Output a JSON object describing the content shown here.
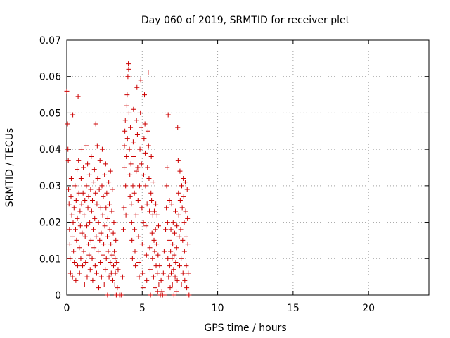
{
  "chart_data": {
    "type": "scatter",
    "title": "Day 060 of 2019, SRMTID for receiver plet",
    "xlabel": "GPS time / hours",
    "ylabel": "SRMTID / TECUs",
    "xlim": [
      0,
      24
    ],
    "ylim": [
      0,
      0.07
    ],
    "x_ticks": [
      "0",
      "5",
      "10",
      "15",
      "20"
    ],
    "y_ticks": [
      "0",
      "0.01",
      "0.02",
      "0.03",
      "0.04",
      "0.05",
      "0.06",
      "0.07"
    ],
    "x_tick_values": [
      0,
      5,
      10,
      15,
      20
    ],
    "y_tick_values": [
      0,
      0.01,
      0.02,
      0.03,
      0.04,
      0.05,
      0.06,
      0.07
    ],
    "grid": true,
    "marker": "+",
    "color": "#cc0000",
    "series": [
      {
        "values": [
          [
            0.0,
            0.056
          ],
          [
            0.05,
            0.047
          ],
          [
            0.08,
            0.04
          ],
          [
            0.1,
            0.037
          ],
          [
            0.12,
            0.029
          ],
          [
            0.15,
            0.025
          ],
          [
            0.18,
            0.018
          ],
          [
            0.2,
            0.014
          ],
          [
            0.22,
            0.01
          ],
          [
            0.25,
            0.006
          ],
          [
            0.28,
            0.027
          ],
          [
            0.3,
            0.032
          ],
          [
            0.33,
            0.022
          ],
          [
            0.35,
            0.016
          ],
          [
            0.38,
            0.005
          ],
          [
            0.4,
            0.0495
          ],
          [
            0.42,
            0.02
          ],
          [
            0.45,
            0.012
          ],
          [
            0.48,
            0.024
          ],
          [
            0.5,
            0.009
          ],
          [
            0.55,
            0.03
          ],
          [
            0.58,
            0.018
          ],
          [
            0.6,
            0.004
          ],
          [
            0.62,
            0.026
          ],
          [
            0.65,
            0.015
          ],
          [
            0.68,
            0.0345
          ],
          [
            0.7,
            0.021
          ],
          [
            0.72,
            0.008
          ],
          [
            0.75,
            0.0545
          ],
          [
            0.78,
            0.037
          ],
          [
            0.8,
            0.028
          ],
          [
            0.83,
            0.013
          ],
          [
            0.85,
            0.006
          ],
          [
            0.88,
            0.023
          ],
          [
            0.9,
            0.019
          ],
          [
            0.93,
            0.01
          ],
          [
            0.95,
            0.032
          ],
          [
            0.98,
            0.025
          ],
          [
            1.0,
            0.04
          ],
          [
            1.02,
            0.017
          ],
          [
            1.05,
            0.008
          ],
          [
            1.08,
            0.028
          ],
          [
            1.1,
            0.035
          ],
          [
            1.12,
            0.012
          ],
          [
            1.15,
            0.022
          ],
          [
            1.18,
            0.003
          ],
          [
            1.2,
            0.026
          ],
          [
            1.22,
            0.016
          ],
          [
            1.25,
            0.009
          ],
          [
            1.28,
            0.041
          ],
          [
            1.3,
            0.03
          ],
          [
            1.33,
            0.019
          ],
          [
            1.35,
            0.005
          ],
          [
            1.38,
            0.036
          ],
          [
            1.4,
            0.024
          ],
          [
            1.42,
            0.014
          ],
          [
            1.45,
            0.027
          ],
          [
            1.48,
            0.011
          ],
          [
            1.5,
            0.033
          ],
          [
            1.52,
            0.02
          ],
          [
            1.55,
            0.007
          ],
          [
            1.58,
            0.029
          ],
          [
            1.6,
            0.015
          ],
          [
            1.62,
            0.038
          ],
          [
            1.65,
            0.023
          ],
          [
            1.68,
            0.01
          ],
          [
            1.7,
            0.026
          ],
          [
            1.72,
            0.004
          ],
          [
            1.75,
            0.018
          ],
          [
            1.78,
            0.031
          ],
          [
            1.8,
            0.013
          ],
          [
            1.83,
            0.0345
          ],
          [
            1.85,
            0.021
          ],
          [
            1.88,
            0.008
          ],
          [
            1.9,
            0.028
          ],
          [
            1.92,
            0.047
          ],
          [
            1.95,
            0.016
          ],
          [
            1.98,
            0.006
          ],
          [
            2.0,
            0.025
          ],
          [
            2.02,
            0.041
          ],
          [
            2.05,
            0.032
          ],
          [
            2.08,
            0.012
          ],
          [
            2.1,
            0.02
          ],
          [
            2.12,
            0.002
          ],
          [
            2.15,
            0.029
          ],
          [
            2.18,
            0.015
          ],
          [
            2.2,
            0.037
          ],
          [
            2.22,
            0.009
          ],
          [
            2.25,
            0.024
          ],
          [
            2.28,
            0.017
          ],
          [
            2.3,
            0.005
          ],
          [
            2.33,
            0.03
          ],
          [
            2.35,
            0.04
          ],
          [
            2.38,
            0.022
          ],
          [
            2.4,
            0.011
          ],
          [
            2.42,
            0.027
          ],
          [
            2.45,
            0.014
          ],
          [
            2.48,
            0.003
          ],
          [
            2.5,
            0.033
          ],
          [
            2.52,
            0.019
          ],
          [
            2.55,
            0.007
          ],
          [
            2.58,
            0.036
          ],
          [
            2.6,
            0.024
          ],
          [
            2.62,
            0.01
          ],
          [
            2.65,
            0.028
          ],
          [
            2.68,
            0.016
          ],
          [
            2.7,
            0.0
          ],
          [
            2.72,
            0.021
          ],
          [
            2.75,
            0.012
          ],
          [
            2.78,
            0.031
          ],
          [
            2.8,
            0.005
          ],
          [
            2.82,
            0.025
          ],
          [
            2.85,
            0.018
          ],
          [
            2.88,
            0.009
          ],
          [
            2.9,
            0.034
          ],
          [
            2.92,
            0.014
          ],
          [
            2.95,
            0.006
          ],
          [
            2.98,
            0.023
          ],
          [
            3.0,
            0.011
          ],
          [
            3.02,
            0.029
          ],
          [
            3.05,
            0.004
          ],
          [
            3.08,
            0.017
          ],
          [
            3.1,
            0.008
          ],
          [
            3.12,
            0.02
          ],
          [
            3.15,
            0.012
          ],
          [
            3.18,
            0.003
          ],
          [
            3.2,
            0.01
          ],
          [
            3.22,
            0.006
          ],
          [
            3.25,
            0.015
          ],
          [
            3.28,
            0.0
          ],
          [
            3.3,
            0.009
          ],
          [
            3.35,
            0.002
          ],
          [
            3.4,
            0.007
          ],
          [
            3.5,
            0.0
          ],
          [
            3.6,
            0.0
          ],
          [
            3.7,
            0.005
          ],
          [
            3.75,
            0.018
          ],
          [
            3.78,
            0.024
          ],
          [
            3.8,
            0.035
          ],
          [
            3.82,
            0.041
          ],
          [
            3.85,
            0.045
          ],
          [
            3.88,
            0.048
          ],
          [
            3.9,
            0.03
          ],
          [
            3.92,
            0.022
          ],
          [
            3.95,
            0.038
          ],
          [
            3.98,
            0.052
          ],
          [
            4.0,
            0.055
          ],
          [
            4.02,
            0.043
          ],
          [
            4.05,
            0.06
          ],
          [
            4.08,
            0.0635
          ],
          [
            4.1,
            0.062
          ],
          [
            4.12,
            0.05
          ],
          [
            4.15,
            0.04
          ],
          [
            4.18,
            0.033
          ],
          [
            4.2,
            0.027
          ],
          [
            4.22,
            0.046
          ],
          [
            4.25,
            0.036
          ],
          [
            4.28,
            0.025
          ],
          [
            4.3,
            0.02
          ],
          [
            4.32,
            0.015
          ],
          [
            4.35,
            0.01
          ],
          [
            4.38,
            0.03
          ],
          [
            4.4,
            0.042
          ],
          [
            4.42,
            0.051
          ],
          [
            4.45,
            0.038
          ],
          [
            4.48,
            0.028
          ],
          [
            4.5,
            0.018
          ],
          [
            4.52,
            0.012
          ],
          [
            4.55,
            0.008
          ],
          [
            4.58,
            0.022
          ],
          [
            4.6,
            0.034
          ],
          [
            4.62,
            0.048
          ],
          [
            4.65,
            0.057
          ],
          [
            4.68,
            0.044
          ],
          [
            4.7,
            0.035
          ],
          [
            4.72,
            0.026
          ],
          [
            4.75,
            0.016
          ],
          [
            4.78,
            0.009
          ],
          [
            4.8,
            0.005
          ],
          [
            4.82,
            0.03
          ],
          [
            4.85,
            0.04
          ],
          [
            4.88,
            0.05
          ],
          [
            4.9,
            0.059
          ],
          [
            4.92,
            0.046
          ],
          [
            4.95,
            0.036
          ],
          [
            4.98,
            0.024
          ],
          [
            5.0,
            0.014
          ],
          [
            5.02,
            0.006
          ],
          [
            5.05,
            0.002
          ],
          [
            5.08,
            0.02
          ],
          [
            5.1,
            0.033
          ],
          [
            5.12,
            0.043
          ],
          [
            5.15,
            0.055
          ],
          [
            5.18,
            0.047
          ],
          [
            5.2,
            0.039
          ],
          [
            5.22,
            0.03
          ],
          [
            5.25,
            0.019
          ],
          [
            5.28,
            0.011
          ],
          [
            5.3,
            0.004
          ],
          [
            5.32,
            0.025
          ],
          [
            5.35,
            0.035
          ],
          [
            5.38,
            0.045
          ],
          [
            5.4,
            0.061
          ],
          [
            5.42,
            0.041
          ],
          [
            5.45,
            0.032
          ],
          [
            5.48,
            0.023
          ],
          [
            5.5,
            0.013
          ],
          [
            5.52,
            0.007
          ],
          [
            5.55,
            0.0
          ],
          [
            5.58,
            0.028
          ],
          [
            5.6,
            0.038
          ],
          [
            5.62,
            0.026
          ],
          [
            5.65,
            0.017
          ],
          [
            5.68,
            0.01
          ],
          [
            5.7,
            0.022
          ],
          [
            5.72,
            0.031
          ],
          [
            5.75,
            0.005
          ],
          [
            5.78,
            0.015
          ],
          [
            5.8,
            0.023
          ],
          [
            5.82,
            0.012
          ],
          [
            5.85,
            0.002
          ],
          [
            5.88,
            0.018
          ],
          [
            5.9,
            0.025
          ],
          [
            5.92,
            0.008
          ],
          [
            5.95,
            0.014
          ],
          [
            5.98,
            0.022
          ],
          [
            6.0,
            0.006
          ],
          [
            6.02,
            0.001
          ],
          [
            6.05,
            0.011
          ],
          [
            6.08,
            0.019
          ],
          [
            6.1,
            0.003
          ],
          [
            6.15,
            0.008
          ],
          [
            6.2,
            0.0
          ],
          [
            6.25,
            0.004
          ],
          [
            6.3,
            0.001
          ],
          [
            6.35,
            0.0
          ],
          [
            6.4,
            0.006
          ],
          [
            6.45,
            0.012
          ],
          [
            6.5,
            0.0
          ],
          [
            6.55,
            0.018
          ],
          [
            6.6,
            0.024
          ],
          [
            6.62,
            0.03
          ],
          [
            6.65,
            0.035
          ],
          [
            6.68,
            0.02
          ],
          [
            6.7,
            0.01
          ],
          [
            6.72,
            0.0495
          ],
          [
            6.75,
            0.005
          ],
          [
            6.78,
            0.015
          ],
          [
            6.8,
            0.026
          ],
          [
            6.82,
            0.008
          ],
          [
            6.85,
            0.002
          ],
          [
            6.88,
            0.012
          ],
          [
            6.9,
            0.018
          ],
          [
            6.92,
            0.006
          ],
          [
            6.95,
            0.025
          ],
          [
            6.98,
            0.01
          ],
          [
            7.0,
            0.003
          ],
          [
            7.02,
            0.014
          ],
          [
            7.05,
            0.02
          ],
          [
            7.08,
            0.007
          ],
          [
            7.1,
            0.0
          ],
          [
            7.12,
            0.011
          ],
          [
            7.15,
            0.017
          ],
          [
            7.18,
            0.005
          ],
          [
            7.2,
            0.023
          ],
          [
            7.22,
            0.009
          ],
          [
            7.25,
            0.001
          ],
          [
            7.28,
            0.013
          ],
          [
            7.3,
            0.019
          ],
          [
            7.32,
            0.004
          ],
          [
            7.35,
            0.046
          ],
          [
            7.38,
            0.037
          ],
          [
            7.4,
            0.028
          ],
          [
            7.42,
            0.022
          ],
          [
            7.45,
            0.016
          ],
          [
            7.48,
            0.008
          ],
          [
            7.5,
            0.034
          ],
          [
            7.52,
            0.026
          ],
          [
            7.55,
            0.018
          ],
          [
            7.58,
            0.01
          ],
          [
            7.6,
            0.003
          ],
          [
            7.62,
            0.03
          ],
          [
            7.65,
            0.024
          ],
          [
            7.68,
            0.015
          ],
          [
            7.7,
            0.006
          ],
          [
            7.72,
            0.032
          ],
          [
            7.75,
            0.027
          ],
          [
            7.78,
            0.02
          ],
          [
            7.8,
            0.012
          ],
          [
            7.82,
            0.004
          ],
          [
            7.85,
            0.031
          ],
          [
            7.88,
            0.023
          ],
          [
            7.9,
            0.016
          ],
          [
            7.92,
            0.008
          ],
          [
            7.95,
            0.002
          ],
          [
            7.98,
            0.029
          ],
          [
            8.0,
            0.021
          ],
          [
            8.02,
            0.014
          ],
          [
            8.05,
            0.006
          ],
          [
            8.1,
            0.0
          ]
        ]
      }
    ]
  }
}
